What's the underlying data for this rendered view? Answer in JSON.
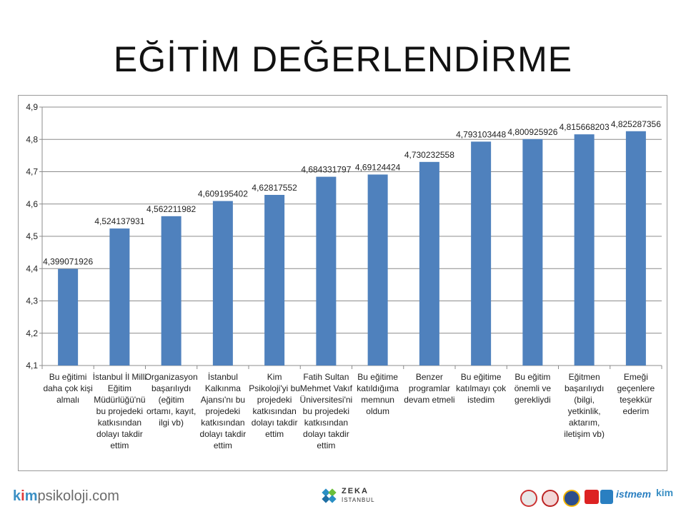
{
  "title": "EĞİTİM DEĞERLENDİRME",
  "chart_data": {
    "type": "bar",
    "categories": [
      [
        "Bu eğitimi",
        "daha çok kişi",
        "almalı"
      ],
      [
        "İstanbul İl Milli",
        "Eğitim",
        "Müdürlüğü'nü",
        "bu projedeki",
        "katkısından",
        "dolayı takdir",
        "ettim"
      ],
      [
        "Organizasyon",
        "başarılıydı",
        "(eğitim",
        "ortamı, kayıt,",
        "ilgi vb)"
      ],
      [
        "İstanbul",
        "Kalkınma",
        "Ajansı'nı bu",
        "projedeki",
        "katkısından",
        "dolayı takdir",
        "ettim"
      ],
      [
        "Kim",
        "Psikoloji'yi bu",
        "projedeki",
        "katkısından",
        "dolayı takdir",
        "ettim"
      ],
      [
        "Fatih Sultan",
        "Mehmet Vakıf",
        "Üniversitesi'ni",
        "bu projedeki",
        "katkısından",
        "dolayı takdir",
        "ettim"
      ],
      [
        "Bu eğitime",
        "katıldığıma",
        "memnun",
        "oldum"
      ],
      [
        "Benzer",
        "programlar",
        "devam etmeli"
      ],
      [
        "Bu eğitime",
        "katılmayı çok",
        "istedim"
      ],
      [
        "Bu eğitim",
        "önemli ve",
        "gerekliydi"
      ],
      [
        "Eğitmen",
        "başarılıydı",
        "(bilgi,",
        "yetkinlik,",
        "aktarım,",
        "iletişim vb)"
      ],
      [
        "Emeği",
        "geçenlere",
        "teşekkür",
        "ederim"
      ]
    ],
    "values": [
      4.399071926,
      4.524137931,
      4.562211982,
      4.609195402,
      4.62817552,
      4.684331797,
      4.69124424,
      4.730232558,
      4.793103448,
      4.800925926,
      4.815668203,
      4.825287356
    ],
    "value_labels": [
      "4,399071926",
      "4,524137931",
      "4,562211982",
      "4,609195402",
      "4,62817552",
      "4,684331797",
      "4,69124424",
      "4,730232558",
      "4,793103448",
      "4,800925926",
      "4,815668203",
      "4,825287356"
    ],
    "yticks": [
      "4,1",
      "4,2",
      "4,3",
      "4,4",
      "4,5",
      "4,6",
      "4,7",
      "4,8",
      "4,9"
    ],
    "ylim": [
      4.1,
      4.9
    ],
    "grid": true,
    "bar_color": "#4f81bd"
  },
  "footer": {
    "brand_prefix_k": "k",
    "brand_prefix_i": "i",
    "brand_m": "m",
    "brand_rest": "psikoloji.com",
    "zeka_name": "ZEKA",
    "zeka_city": "İSTANBUL",
    "istmem": "istmem",
    "kim": "kim"
  }
}
